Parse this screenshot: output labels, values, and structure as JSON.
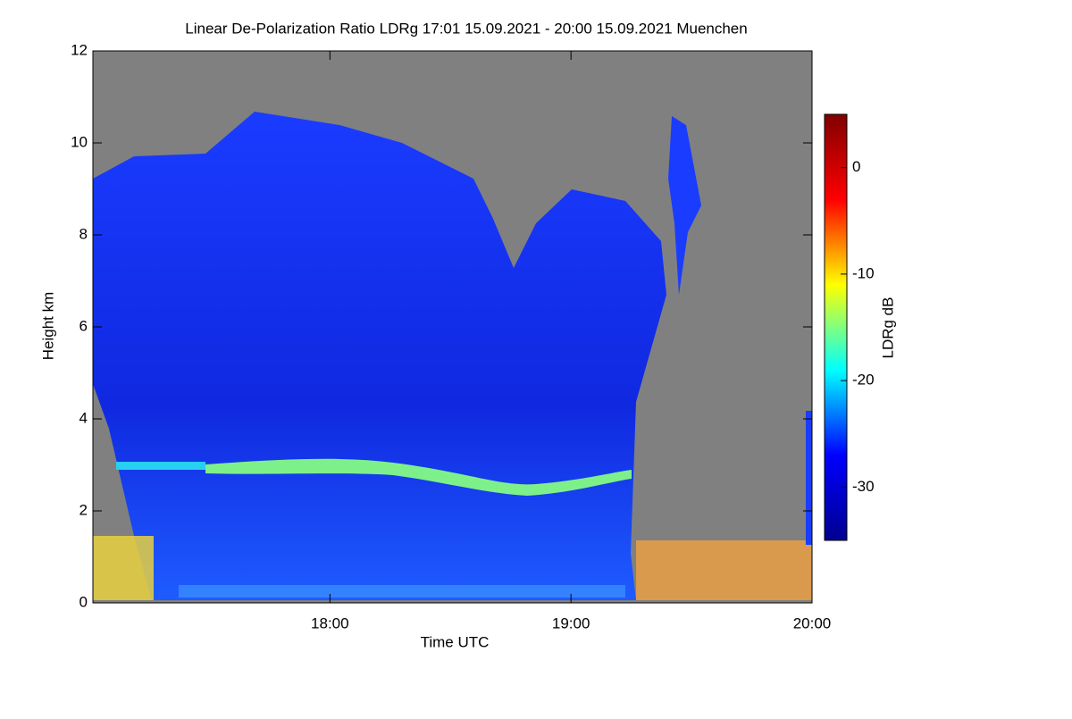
{
  "chart_data": {
    "type": "heatmap",
    "title": "Linear De-Polarization Ratio LDRg   17:01 15.09.2021 - 20:00 15.09.2021 Muenchen",
    "x_label": "Time UTC",
    "y_label": "Height km",
    "colorbar_label": "LDRg dB",
    "xlim": [
      17.0167,
      20.0
    ],
    "xticks": [
      {
        "value": 18,
        "label": "18:00"
      },
      {
        "value": 19,
        "label": "19:00"
      },
      {
        "value": 20,
        "label": "20:00"
      }
    ],
    "ylim": [
      0,
      12
    ],
    "yticks": [
      0,
      2,
      4,
      6,
      8,
      10,
      12
    ],
    "zlim": [
      -35,
      5
    ],
    "zticks": [
      -30,
      -20,
      -10,
      0
    ],
    "colormap": [
      "#00008f",
      "#0000ff",
      "#00ffff",
      "#ffff00",
      "#ff0000",
      "#800000"
    ],
    "missing_color": "#808080"
  }
}
